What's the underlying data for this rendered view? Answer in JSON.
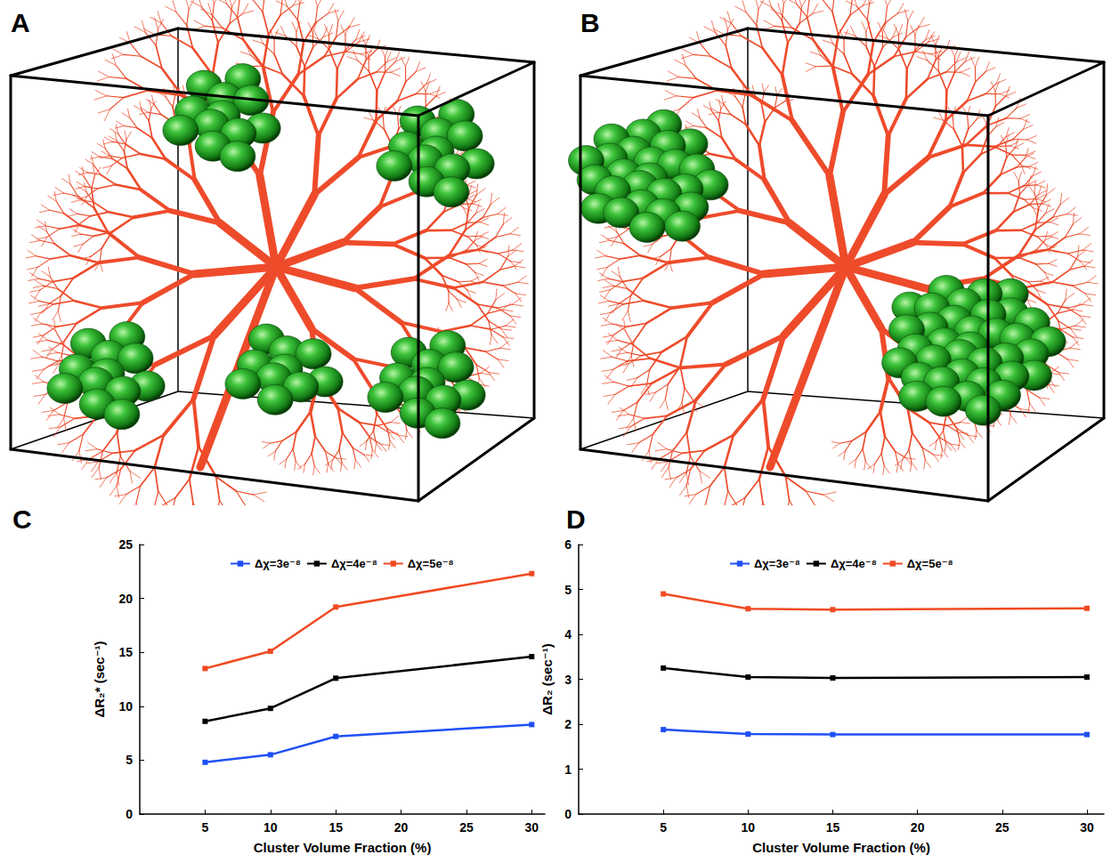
{
  "panel_labels": [
    "A",
    "B",
    "C",
    "D"
  ],
  "chart_data": [
    {
      "type": "line",
      "x_label": "Cluster Volume Fraction (%)",
      "y_label": "ΔR₂* (sec⁻¹)",
      "x": [
        5,
        10,
        15,
        30
      ],
      "xlim": [
        0,
        31
      ],
      "xticks": [
        5,
        10,
        15,
        20,
        25,
        30
      ],
      "ylim": [
        0,
        25
      ],
      "yticks": [
        0,
        5,
        10,
        15,
        20,
        25
      ],
      "grid": false,
      "legend": "top",
      "marker": "square",
      "series": [
        {
          "name": "Δχ=3e⁻⁸",
          "color": "#1f4ff5",
          "values": [
            4.8,
            5.5,
            7.2,
            8.3
          ]
        },
        {
          "name": "Δχ=4e⁻⁸",
          "color": "#000000",
          "values": [
            8.6,
            9.8,
            12.6,
            14.6
          ]
        },
        {
          "name": "Δχ=5e⁻⁸",
          "color": "#f04a22",
          "values": [
            13.5,
            15.1,
            19.2,
            22.3
          ]
        }
      ]
    },
    {
      "type": "line",
      "x_label": "Cluster Volume Fraction (%)",
      "y_label": "ΔR₂ (sec⁻¹)",
      "x": [
        5,
        10,
        15,
        30
      ],
      "xlim": [
        0,
        31
      ],
      "xticks": [
        5,
        10,
        15,
        20,
        25,
        30
      ],
      "ylim": [
        0,
        6
      ],
      "yticks": [
        0,
        1,
        2,
        3,
        4,
        5,
        6
      ],
      "grid": false,
      "legend": "top",
      "marker": "square",
      "series": [
        {
          "name": "Δχ=3e⁻⁸",
          "color": "#1f4ff5",
          "values": [
            1.88,
            1.78,
            1.77,
            1.77
          ]
        },
        {
          "name": "Δχ=4e⁻⁸",
          "color": "#000000",
          "values": [
            3.25,
            3.05,
            3.03,
            3.05
          ]
        },
        {
          "name": "Δχ=5e⁻⁸",
          "color": "#f04a22",
          "values": [
            4.9,
            4.57,
            4.55,
            4.58
          ]
        }
      ]
    }
  ]
}
